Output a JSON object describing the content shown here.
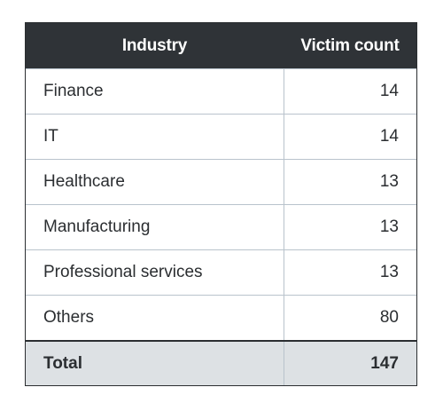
{
  "table": {
    "headers": [
      "Industry",
      "Victim count"
    ],
    "rows": [
      {
        "industry": "Finance",
        "count": "14"
      },
      {
        "industry": "IT",
        "count": "14"
      },
      {
        "industry": "Healthcare",
        "count": "13"
      },
      {
        "industry": "Manufacturing",
        "count": "13"
      },
      {
        "industry": "Professional services",
        "count": "13"
      },
      {
        "industry": "Others",
        "count": "80"
      }
    ],
    "total": {
      "label": "Total",
      "count": "147"
    }
  },
  "colors": {
    "header_bg": "#2f3337",
    "header_text": "#ffffff",
    "total_bg": "#dde1e4",
    "border": "#b9c3cc"
  }
}
